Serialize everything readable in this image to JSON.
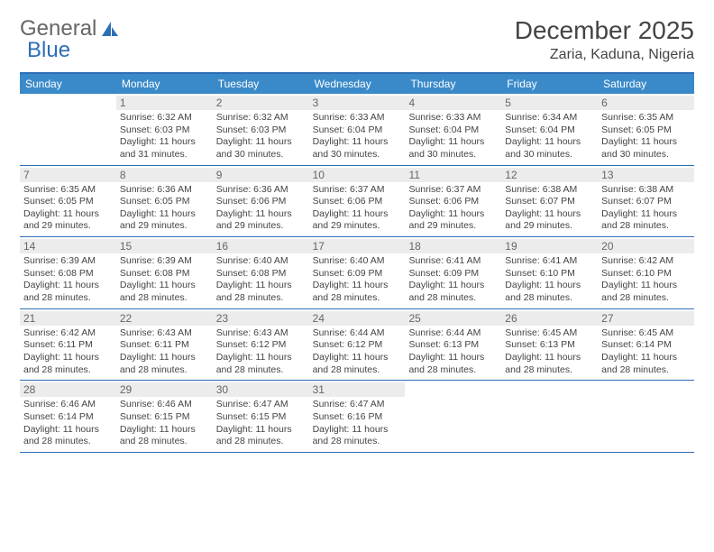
{
  "logo": {
    "text1": "General",
    "text2": "Blue"
  },
  "title": "December 2025",
  "location": "Zaria, Kaduna, Nigeria",
  "colors": {
    "header_bg": "#3a8ac9",
    "border": "#2d6fb5",
    "daynum_bg": "#ececec",
    "text": "#444444"
  },
  "dayNames": [
    "Sunday",
    "Monday",
    "Tuesday",
    "Wednesday",
    "Thursday",
    "Friday",
    "Saturday"
  ],
  "weeks": [
    [
      {
        "num": "",
        "sunrise": "",
        "sunset": "",
        "daylight": ""
      },
      {
        "num": "1",
        "sunrise": "Sunrise: 6:32 AM",
        "sunset": "Sunset: 6:03 PM",
        "daylight": "Daylight: 11 hours and 31 minutes."
      },
      {
        "num": "2",
        "sunrise": "Sunrise: 6:32 AM",
        "sunset": "Sunset: 6:03 PM",
        "daylight": "Daylight: 11 hours and 30 minutes."
      },
      {
        "num": "3",
        "sunrise": "Sunrise: 6:33 AM",
        "sunset": "Sunset: 6:04 PM",
        "daylight": "Daylight: 11 hours and 30 minutes."
      },
      {
        "num": "4",
        "sunrise": "Sunrise: 6:33 AM",
        "sunset": "Sunset: 6:04 PM",
        "daylight": "Daylight: 11 hours and 30 minutes."
      },
      {
        "num": "5",
        "sunrise": "Sunrise: 6:34 AM",
        "sunset": "Sunset: 6:04 PM",
        "daylight": "Daylight: 11 hours and 30 minutes."
      },
      {
        "num": "6",
        "sunrise": "Sunrise: 6:35 AM",
        "sunset": "Sunset: 6:05 PM",
        "daylight": "Daylight: 11 hours and 30 minutes."
      }
    ],
    [
      {
        "num": "7",
        "sunrise": "Sunrise: 6:35 AM",
        "sunset": "Sunset: 6:05 PM",
        "daylight": "Daylight: 11 hours and 29 minutes."
      },
      {
        "num": "8",
        "sunrise": "Sunrise: 6:36 AM",
        "sunset": "Sunset: 6:05 PM",
        "daylight": "Daylight: 11 hours and 29 minutes."
      },
      {
        "num": "9",
        "sunrise": "Sunrise: 6:36 AM",
        "sunset": "Sunset: 6:06 PM",
        "daylight": "Daylight: 11 hours and 29 minutes."
      },
      {
        "num": "10",
        "sunrise": "Sunrise: 6:37 AM",
        "sunset": "Sunset: 6:06 PM",
        "daylight": "Daylight: 11 hours and 29 minutes."
      },
      {
        "num": "11",
        "sunrise": "Sunrise: 6:37 AM",
        "sunset": "Sunset: 6:06 PM",
        "daylight": "Daylight: 11 hours and 29 minutes."
      },
      {
        "num": "12",
        "sunrise": "Sunrise: 6:38 AM",
        "sunset": "Sunset: 6:07 PM",
        "daylight": "Daylight: 11 hours and 29 minutes."
      },
      {
        "num": "13",
        "sunrise": "Sunrise: 6:38 AM",
        "sunset": "Sunset: 6:07 PM",
        "daylight": "Daylight: 11 hours and 28 minutes."
      }
    ],
    [
      {
        "num": "14",
        "sunrise": "Sunrise: 6:39 AM",
        "sunset": "Sunset: 6:08 PM",
        "daylight": "Daylight: 11 hours and 28 minutes."
      },
      {
        "num": "15",
        "sunrise": "Sunrise: 6:39 AM",
        "sunset": "Sunset: 6:08 PM",
        "daylight": "Daylight: 11 hours and 28 minutes."
      },
      {
        "num": "16",
        "sunrise": "Sunrise: 6:40 AM",
        "sunset": "Sunset: 6:08 PM",
        "daylight": "Daylight: 11 hours and 28 minutes."
      },
      {
        "num": "17",
        "sunrise": "Sunrise: 6:40 AM",
        "sunset": "Sunset: 6:09 PM",
        "daylight": "Daylight: 11 hours and 28 minutes."
      },
      {
        "num": "18",
        "sunrise": "Sunrise: 6:41 AM",
        "sunset": "Sunset: 6:09 PM",
        "daylight": "Daylight: 11 hours and 28 minutes."
      },
      {
        "num": "19",
        "sunrise": "Sunrise: 6:41 AM",
        "sunset": "Sunset: 6:10 PM",
        "daylight": "Daylight: 11 hours and 28 minutes."
      },
      {
        "num": "20",
        "sunrise": "Sunrise: 6:42 AM",
        "sunset": "Sunset: 6:10 PM",
        "daylight": "Daylight: 11 hours and 28 minutes."
      }
    ],
    [
      {
        "num": "21",
        "sunrise": "Sunrise: 6:42 AM",
        "sunset": "Sunset: 6:11 PM",
        "daylight": "Daylight: 11 hours and 28 minutes."
      },
      {
        "num": "22",
        "sunrise": "Sunrise: 6:43 AM",
        "sunset": "Sunset: 6:11 PM",
        "daylight": "Daylight: 11 hours and 28 minutes."
      },
      {
        "num": "23",
        "sunrise": "Sunrise: 6:43 AM",
        "sunset": "Sunset: 6:12 PM",
        "daylight": "Daylight: 11 hours and 28 minutes."
      },
      {
        "num": "24",
        "sunrise": "Sunrise: 6:44 AM",
        "sunset": "Sunset: 6:12 PM",
        "daylight": "Daylight: 11 hours and 28 minutes."
      },
      {
        "num": "25",
        "sunrise": "Sunrise: 6:44 AM",
        "sunset": "Sunset: 6:13 PM",
        "daylight": "Daylight: 11 hours and 28 minutes."
      },
      {
        "num": "26",
        "sunrise": "Sunrise: 6:45 AM",
        "sunset": "Sunset: 6:13 PM",
        "daylight": "Daylight: 11 hours and 28 minutes."
      },
      {
        "num": "27",
        "sunrise": "Sunrise: 6:45 AM",
        "sunset": "Sunset: 6:14 PM",
        "daylight": "Daylight: 11 hours and 28 minutes."
      }
    ],
    [
      {
        "num": "28",
        "sunrise": "Sunrise: 6:46 AM",
        "sunset": "Sunset: 6:14 PM",
        "daylight": "Daylight: 11 hours and 28 minutes."
      },
      {
        "num": "29",
        "sunrise": "Sunrise: 6:46 AM",
        "sunset": "Sunset: 6:15 PM",
        "daylight": "Daylight: 11 hours and 28 minutes."
      },
      {
        "num": "30",
        "sunrise": "Sunrise: 6:47 AM",
        "sunset": "Sunset: 6:15 PM",
        "daylight": "Daylight: 11 hours and 28 minutes."
      },
      {
        "num": "31",
        "sunrise": "Sunrise: 6:47 AM",
        "sunset": "Sunset: 6:16 PM",
        "daylight": "Daylight: 11 hours and 28 minutes."
      },
      {
        "num": "",
        "sunrise": "",
        "sunset": "",
        "daylight": ""
      },
      {
        "num": "",
        "sunrise": "",
        "sunset": "",
        "daylight": ""
      },
      {
        "num": "",
        "sunrise": "",
        "sunset": "",
        "daylight": ""
      }
    ]
  ]
}
